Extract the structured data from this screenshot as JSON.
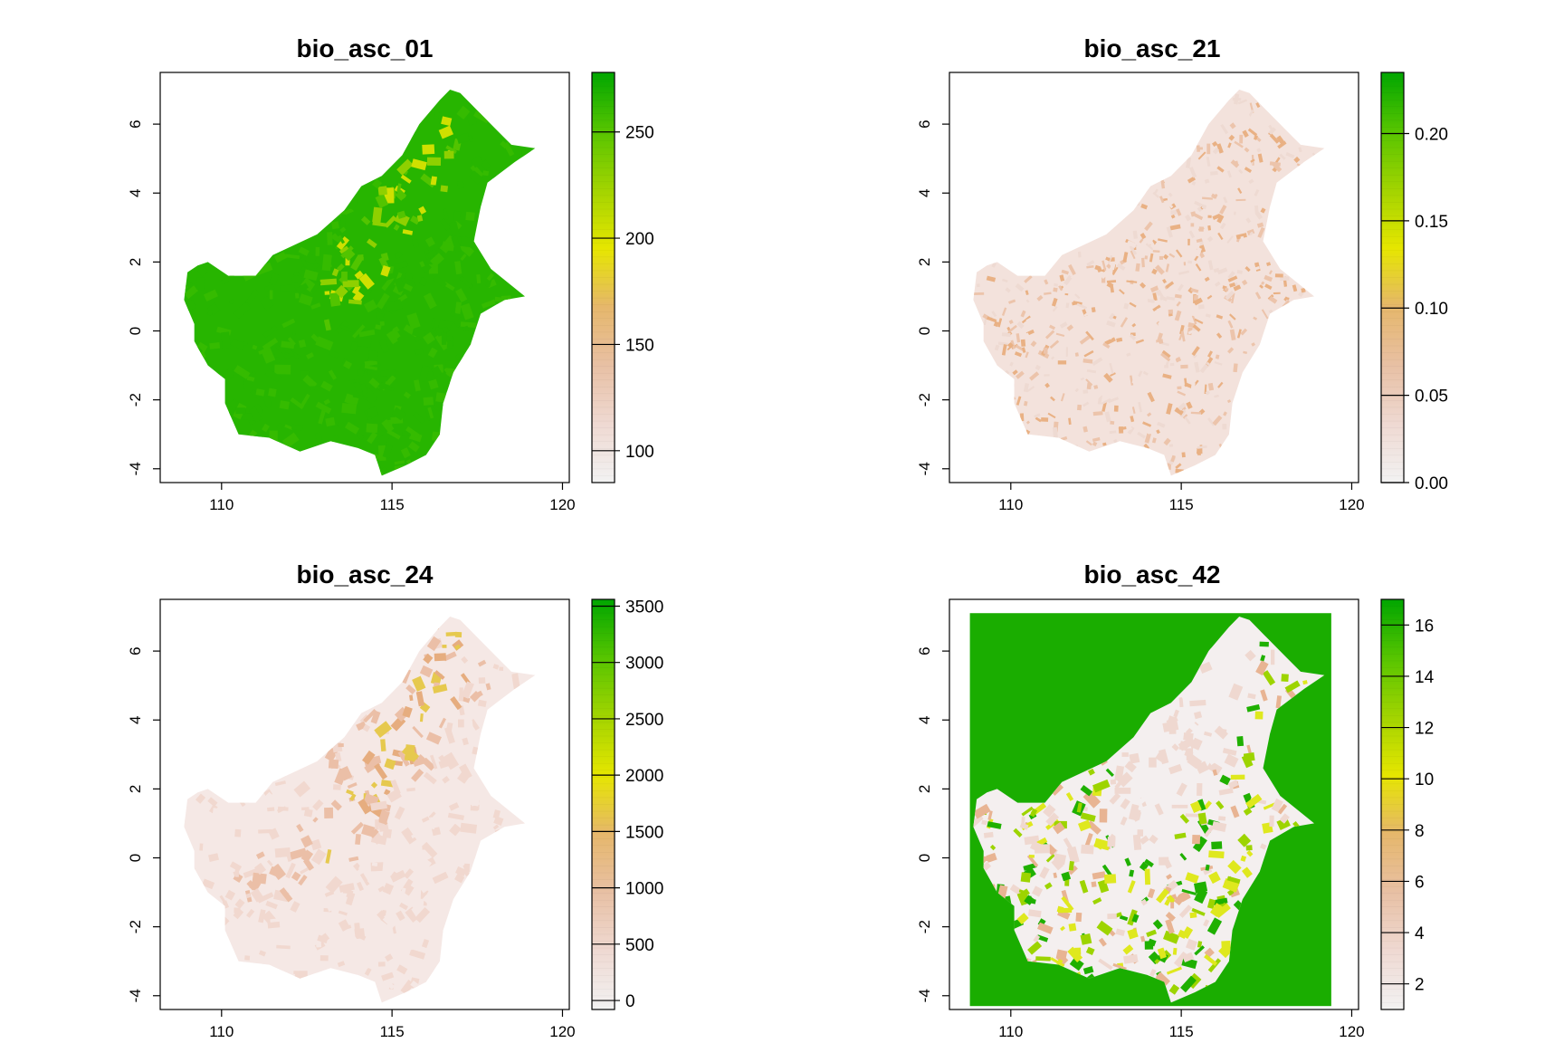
{
  "panels": [
    {
      "id": "01",
      "title": "bio_asc_01",
      "variant": "temp",
      "land_colors": [
        "#27b500",
        "#35bb00",
        "#52c400",
        "#8fd000",
        "#cfe000"
      ],
      "legend": {
        "min": 85,
        "max": 278,
        "ticks": [
          100,
          150,
          200,
          250
        ],
        "labels": [
          "100",
          "150",
          "200",
          "250"
        ]
      }
    },
    {
      "id": "21",
      "title": "bio_asc_21",
      "variant": "slope",
      "land_colors": [
        "#f3e2dc",
        "#ecc4ab",
        "#e9b184",
        "#eedad2"
      ],
      "legend": {
        "min": 0.0,
        "max": 0.235,
        "ticks": [
          0.0,
          0.05,
          0.1,
          0.15,
          0.2
        ],
        "labels": [
          "0.00",
          "0.05",
          "0.10",
          "0.15",
          "0.20"
        ]
      }
    },
    {
      "id": "24",
      "title": "bio_asc_24",
      "variant": "elev",
      "land_colors": [
        "#f5e8e5",
        "#f1d8cf",
        "#ebbfa7",
        "#e6ad7f",
        "#e6c94e"
      ],
      "legend": {
        "min": -80,
        "max": 3560,
        "ticks": [
          0,
          500,
          1000,
          1500,
          2000,
          2500,
          3000,
          3500
        ],
        "labels": [
          "0",
          "500",
          "1000",
          "1500",
          "2000",
          "2500",
          "3000",
          "3500"
        ]
      }
    },
    {
      "id": "42",
      "title": "bio_asc_42",
      "variant": "landcover",
      "land_colors": [
        "#f4efef",
        "#efd8d0",
        "#e8b493",
        "#dfe81e",
        "#9dd400",
        "#1fb000"
      ],
      "background_color": "#1aad00",
      "legend": {
        "min": 1,
        "max": 17,
        "ticks": [
          2,
          4,
          6,
          8,
          10,
          12,
          14,
          16
        ],
        "labels": [
          "2",
          "4",
          "6",
          "8",
          "10",
          "12",
          "14",
          "16"
        ]
      }
    }
  ],
  "x_axis": {
    "range": [
      108.2,
      120.2
    ],
    "ticks": [
      110,
      115,
      120
    ],
    "labels": [
      "110",
      "115",
      "120"
    ]
  },
  "y_axis": {
    "range": [
      -4.4,
      7.5
    ],
    "ticks": [
      -4,
      -2,
      0,
      2,
      4,
      6
    ],
    "labels": [
      "-4",
      "-2",
      "0",
      "2",
      "4",
      "6"
    ]
  },
  "color_ramp": [
    "#f2f2f2",
    "#efd9d2",
    "#e8c0a4",
    "#e6b76b",
    "#e6e600",
    "#a2d400",
    "#57c500",
    "#00a600"
  ],
  "island_outline": [
    [
      109.2,
      0.2
    ],
    [
      108.9,
      0.9
    ],
    [
      109.0,
      1.7
    ],
    [
      109.3,
      1.9
    ],
    [
      109.6,
      2.0
    ],
    [
      110.2,
      1.6
    ],
    [
      111.0,
      1.6
    ],
    [
      111.5,
      2.2
    ],
    [
      112.8,
      2.8
    ],
    [
      113.6,
      3.5
    ],
    [
      114.1,
      4.2
    ],
    [
      114.7,
      4.5
    ],
    [
      115.3,
      5.1
    ],
    [
      115.8,
      6.0
    ],
    [
      116.4,
      6.7
    ],
    [
      116.7,
      7.0
    ],
    [
      117.0,
      6.9
    ],
    [
      117.5,
      6.4
    ],
    [
      118.1,
      5.8
    ],
    [
      118.5,
      5.4
    ],
    [
      119.2,
      5.3
    ],
    [
      118.6,
      4.9
    ],
    [
      117.8,
      4.3
    ],
    [
      117.6,
      3.6
    ],
    [
      117.4,
      2.6
    ],
    [
      117.9,
      1.8
    ],
    [
      118.9,
      1.0
    ],
    [
      118.3,
      0.9
    ],
    [
      117.6,
      0.5
    ],
    [
      117.3,
      -0.4
    ],
    [
      116.8,
      -1.2
    ],
    [
      116.5,
      -2.1
    ],
    [
      116.4,
      -3.0
    ],
    [
      116.0,
      -3.6
    ],
    [
      115.4,
      -3.9
    ],
    [
      114.7,
      -4.2
    ],
    [
      114.5,
      -3.6
    ],
    [
      114.0,
      -3.4
    ],
    [
      113.2,
      -3.2
    ],
    [
      112.3,
      -3.5
    ],
    [
      111.4,
      -3.1
    ],
    [
      110.5,
      -3.0
    ],
    [
      110.1,
      -2.1
    ],
    [
      110.1,
      -1.4
    ],
    [
      109.6,
      -1.0
    ],
    [
      109.2,
      -0.3
    ]
  ]
}
